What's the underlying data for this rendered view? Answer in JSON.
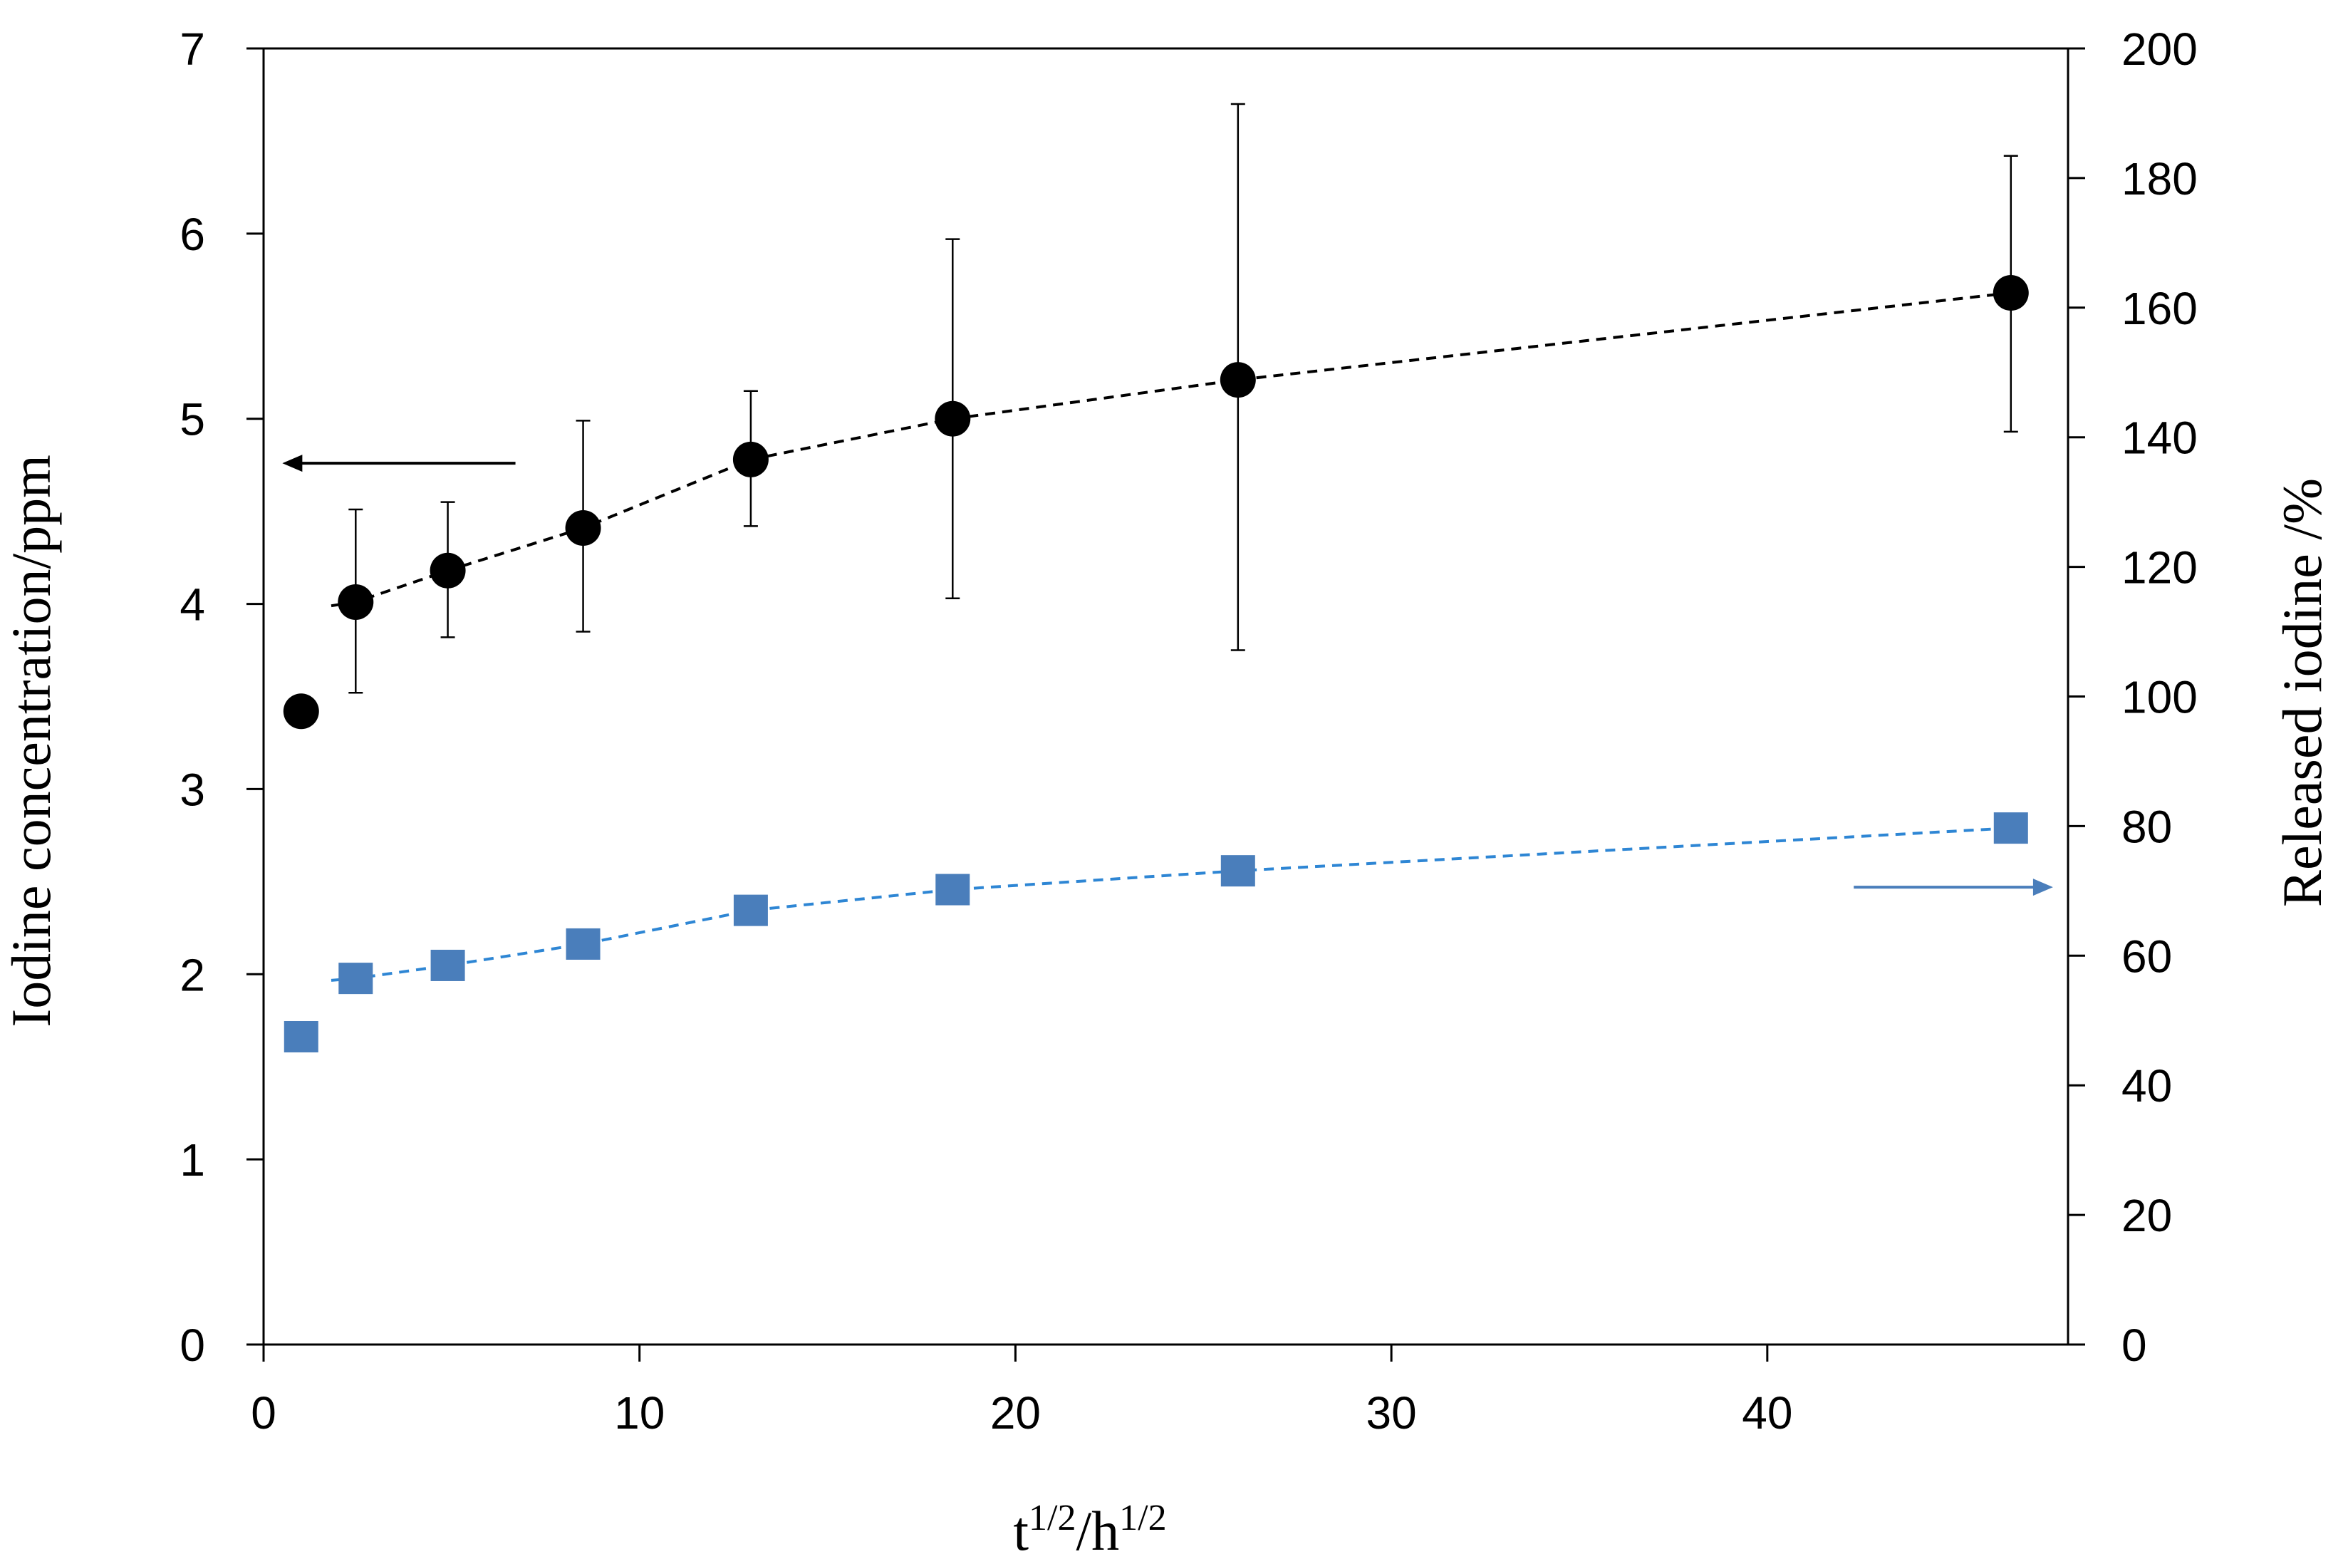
{
  "chart_data": {
    "type": "scatter",
    "title": "",
    "xlabel": {
      "parts": [
        {
          "text": "t",
          "sup": false
        },
        {
          "text": "1/2",
          "sup": true
        },
        {
          "text": "/h",
          "sup": false
        },
        {
          "text": "1/2",
          "sup": true
        }
      ]
    },
    "ylabel_left": "Iodine concentration/ppm",
    "ylabel_right": "Released iodine /%",
    "xlim": [
      0,
      48
    ],
    "ylim_left": [
      0,
      7
    ],
    "ylim_right": [
      0,
      200
    ],
    "x_ticks": [
      0,
      10,
      20,
      30,
      40
    ],
    "y_left_ticks": [
      0,
      1,
      2,
      3,
      4,
      5,
      6,
      7
    ],
    "y_right_ticks": [
      0,
      20,
      40,
      60,
      80,
      100,
      120,
      140,
      160,
      180,
      200
    ],
    "grid": false,
    "series": [
      {
        "name": "Iodine concentration",
        "axis": "left",
        "marker": "circle",
        "color": "#000000",
        "trend_line_color": "#000000",
        "x": [
          1.0,
          2.45,
          4.9,
          8.5,
          12.96,
          18.33,
          25.92,
          46.48
        ],
        "y": [
          3.42,
          4.01,
          4.18,
          4.41,
          4.78,
          5.0,
          5.21,
          5.68
        ],
        "error_low": [
          null,
          3.52,
          3.82,
          3.85,
          4.42,
          4.03,
          3.75,
          4.93
        ],
        "error_high": [
          null,
          4.51,
          4.55,
          4.99,
          5.15,
          5.97,
          6.7,
          6.42
        ],
        "trend_x_start": 1.8,
        "trend_y_start": 3.99
      },
      {
        "name": "Released iodine",
        "axis": "right",
        "marker": "square",
        "color": "#4a7ebb",
        "trend_line_color": "#2e86d4",
        "x": [
          1.0,
          2.45,
          4.9,
          8.5,
          12.96,
          18.33,
          25.92,
          46.48
        ],
        "y": [
          47.5,
          56.5,
          58.5,
          61.8,
          67.0,
          70.2,
          73.1,
          79.7
        ],
        "trend_x_start": 1.8,
        "trend_y_start": 56.2
      }
    ],
    "annotations": [
      {
        "type": "arrow",
        "points_to": "left-axis",
        "color": "#000000",
        "x_from": 6.7,
        "x_to": 0.5,
        "y_left": 4.76
      },
      {
        "type": "arrow",
        "points_to": "right-axis",
        "color": "#4a7ebb",
        "x_from": 42.3,
        "x_to": 47.6,
        "y_left": 2.47
      }
    ]
  }
}
